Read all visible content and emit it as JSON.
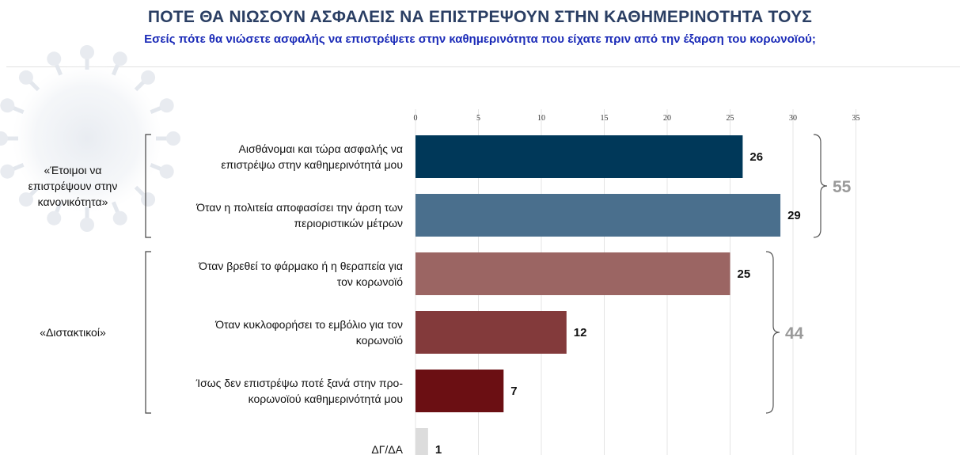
{
  "header": {
    "title": "ΠΟΤΕ ΘΑ ΝΙΩΣΟΥΝ ΑΣΦΑΛΕΙΣ ΝΑ ΕΠΙΣΤΡΕΨΟΥΝ ΣΤΗΝ ΚΑΘΗΜΕΡΙΝΟΤΗΤΑ ΤΟΥΣ",
    "subtitle": "Εσείς πότε θα νιώσετε ασφαλής να επιστρέψετε στην καθημερινότητα που είχατε πριν από την έξαρση του κορωνοϊού;"
  },
  "chart_data": {
    "type": "bar",
    "orientation": "horizontal",
    "title": "ΠΟΤΕ ΘΑ ΝΙΩΣΟΥΝ ΑΣΦΑΛΕΙΣ ΝΑ ΕΠΙΣΤΡΕΨΟΥΝ ΣΤΗΝ ΚΑΘΗΜΕΡΙΝΟΤΗΤΑ ΤΟΥΣ",
    "xlim": [
      0,
      35
    ],
    "ticks": [
      0,
      5,
      10,
      15,
      20,
      25,
      30,
      35
    ],
    "grid": true,
    "categories": [
      [
        "Αισθάνομαι και τώρα ασφαλής να",
        "επιστρέψω στην καθημερινότητά μου"
      ],
      [
        "Όταν η πολιτεία αποφασίσει την άρση των",
        "περιοριστικών μέτρων"
      ],
      [
        "Όταν βρεθεί το φάρμακο ή η θεραπεία για",
        "τον κορωνοϊό"
      ],
      [
        "Όταν κυκλοφορήσει το εμβόλιο για τον",
        "κορωνοϊό"
      ],
      [
        "Ίσως δεν επιστρέψω ποτέ ξανά στην προ-",
        "κορωνοϊού καθημερινότητά μου"
      ],
      [
        "ΔΓ/ΔΑ"
      ]
    ],
    "values": [
      26,
      29,
      25,
      12,
      7,
      1
    ],
    "colors": [
      "#003859",
      "#4a6f8d",
      "#9b6563",
      "#833a3b",
      "#6b0f13",
      "#dcdcdc"
    ],
    "groups": [
      {
        "label": [
          "«Έτοιμοι να",
          "επιστρέψουν στην",
          "κανονικότητα»"
        ],
        "members": [
          0,
          1
        ],
        "total": 55
      },
      {
        "label": [
          "«Διστακτικοί»"
        ],
        "members": [
          2,
          3,
          4
        ],
        "total": 44
      }
    ]
  }
}
